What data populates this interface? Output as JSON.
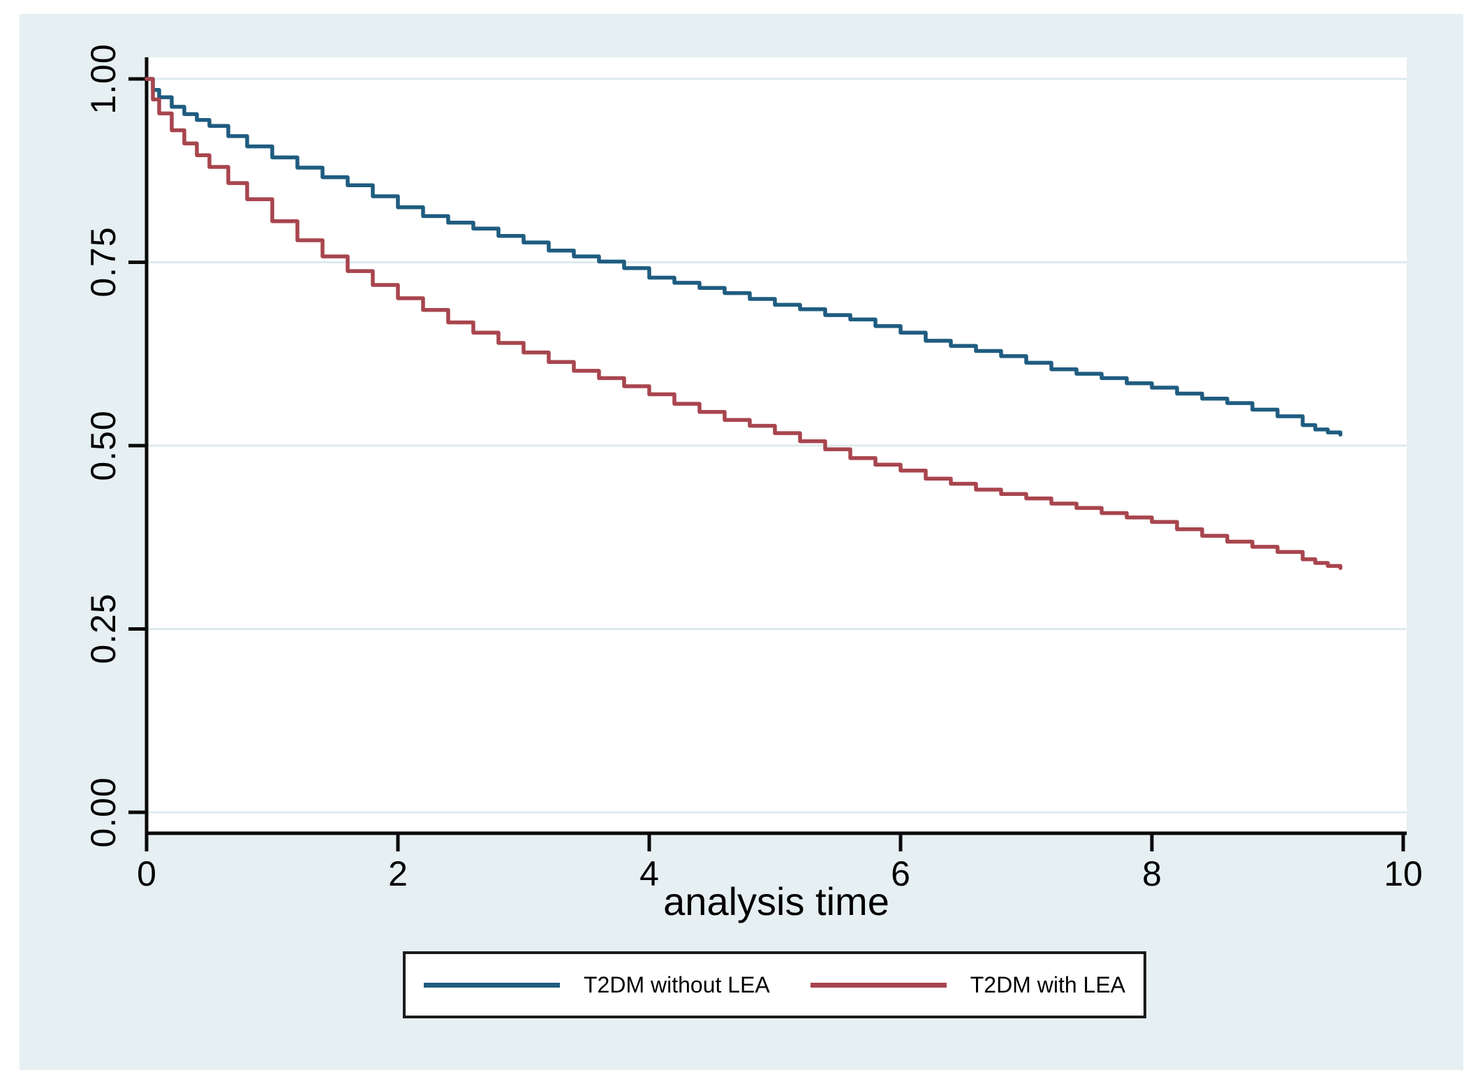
{
  "figure": {
    "background_color": "#e6eff2",
    "plot_background_color": "#ffffff",
    "gridline_color": "#ddebee",
    "axis_color": "#0a0a0a",
    "legend_border_color": "#1c1c1c"
  },
  "chart_data": {
    "type": "line",
    "subtype": "kaplan-meier-survival",
    "title": "",
    "xlabel": "analysis time",
    "ylabel": "",
    "xlim": [
      0,
      10
    ],
    "ylim": [
      0,
      1
    ],
    "x_ticks": [
      0,
      2,
      4,
      6,
      8,
      10
    ],
    "y_ticks": [
      "0.00",
      "0.25",
      "0.50",
      "0.75",
      "1.00"
    ],
    "y_tick_values": [
      0,
      0.25,
      0.5,
      0.75,
      1
    ],
    "grid": true,
    "legend_position": "bottom-center",
    "series": [
      {
        "name": "T2DM without LEA",
        "color": "#1f5c80",
        "x": [
          0,
          0.05,
          0.1,
          0.2,
          0.3,
          0.4,
          0.5,
          0.65,
          0.8,
          1.0,
          1.2,
          1.4,
          1.6,
          1.8,
          2.0,
          2.2,
          2.4,
          2.6,
          2.8,
          3.0,
          3.2,
          3.4,
          3.6,
          3.8,
          4.0,
          4.2,
          4.4,
          4.6,
          4.8,
          5.0,
          5.2,
          5.4,
          5.6,
          5.8,
          6.0,
          6.2,
          6.4,
          6.6,
          6.8,
          7.0,
          7.2,
          7.4,
          7.6,
          7.8,
          8.0,
          8.2,
          8.4,
          8.6,
          8.8,
          9.0,
          9.2,
          9.3,
          9.4,
          9.5
        ],
        "y": [
          1.0,
          0.985,
          0.975,
          0.962,
          0.952,
          0.944,
          0.936,
          0.922,
          0.908,
          0.893,
          0.879,
          0.866,
          0.855,
          0.84,
          0.825,
          0.813,
          0.804,
          0.796,
          0.786,
          0.777,
          0.766,
          0.758,
          0.751,
          0.742,
          0.729,
          0.722,
          0.715,
          0.708,
          0.7,
          0.692,
          0.686,
          0.678,
          0.672,
          0.663,
          0.654,
          0.643,
          0.636,
          0.629,
          0.622,
          0.613,
          0.604,
          0.598,
          0.592,
          0.585,
          0.579,
          0.571,
          0.564,
          0.558,
          0.549,
          0.54,
          0.528,
          0.522,
          0.518,
          0.515
        ]
      },
      {
        "name": "T2DM with LEA",
        "color": "#a8454e",
        "x": [
          0,
          0.05,
          0.1,
          0.2,
          0.3,
          0.4,
          0.5,
          0.65,
          0.8,
          1.0,
          1.2,
          1.4,
          1.6,
          1.8,
          2.0,
          2.2,
          2.4,
          2.6,
          2.8,
          3.0,
          3.2,
          3.4,
          3.6,
          3.8,
          4.0,
          4.2,
          4.4,
          4.6,
          4.8,
          5.0,
          5.2,
          5.4,
          5.6,
          5.8,
          6.0,
          6.2,
          6.4,
          6.6,
          6.8,
          7.0,
          7.2,
          7.4,
          7.6,
          7.8,
          8.0,
          8.2,
          8.4,
          8.6,
          8.8,
          9.0,
          9.2,
          9.3,
          9.4,
          9.5
        ],
        "y": [
          1.0,
          0.972,
          0.953,
          0.93,
          0.912,
          0.896,
          0.88,
          0.858,
          0.836,
          0.806,
          0.78,
          0.758,
          0.738,
          0.719,
          0.701,
          0.685,
          0.668,
          0.654,
          0.64,
          0.627,
          0.614,
          0.602,
          0.592,
          0.581,
          0.57,
          0.557,
          0.546,
          0.535,
          0.527,
          0.517,
          0.506,
          0.495,
          0.483,
          0.474,
          0.466,
          0.455,
          0.448,
          0.44,
          0.434,
          0.428,
          0.421,
          0.415,
          0.408,
          0.402,
          0.396,
          0.386,
          0.377,
          0.369,
          0.362,
          0.355,
          0.345,
          0.34,
          0.336,
          0.333
        ]
      }
    ]
  }
}
